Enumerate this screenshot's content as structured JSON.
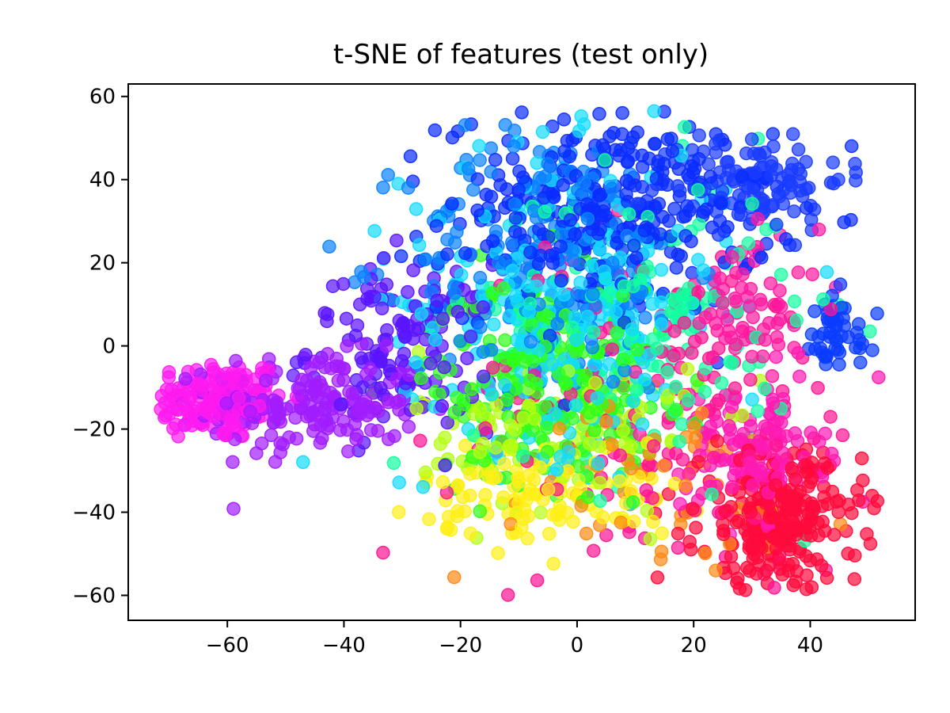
{
  "chart_data": {
    "type": "scatter",
    "title": "t-SNE of features (test only)",
    "xlabel": "",
    "ylabel": "",
    "xlim": [
      -77,
      58
    ],
    "ylim": [
      -66,
      63
    ],
    "xticks": [
      -60,
      -40,
      -20,
      0,
      20,
      40
    ],
    "yticks": [
      -60,
      -40,
      -20,
      0,
      20,
      40,
      60
    ],
    "xtick_labels": [
      "−60",
      "−40",
      "−20",
      "0",
      "20",
      "40"
    ],
    "ytick_labels": [
      "−60",
      "−40",
      "−20",
      "0",
      "20",
      "40",
      "60"
    ],
    "grid": false,
    "legend": "none",
    "marker_opacity": 0.7,
    "clusters": [
      {
        "name": "magenta",
        "color": "#ff19f0",
        "cx": -62,
        "cy": -13,
        "sx": 6,
        "sy": 5,
        "n": 160
      },
      {
        "name": "violet",
        "color": "#a11cff",
        "cx": -45,
        "cy": -14,
        "sx": 9,
        "sy": 6,
        "n": 180
      },
      {
        "name": "indigo",
        "color": "#5a14ff",
        "cx": -30,
        "cy": 0,
        "sx": 8,
        "sy": 10,
        "n": 140
      },
      {
        "name": "blue",
        "color": "#0a2cff",
        "cx": 5,
        "cy": 32,
        "sx": 14,
        "sy": 12,
        "n": 320
      },
      {
        "name": "blue-right",
        "color": "#1a3cff",
        "cx": 30,
        "cy": 40,
        "sx": 8,
        "sy": 6,
        "n": 120
      },
      {
        "name": "azure",
        "color": "#0a82ff",
        "cx": -5,
        "cy": 20,
        "sx": 12,
        "sy": 16,
        "n": 220
      },
      {
        "name": "cyan",
        "color": "#12dcff",
        "cx": -2,
        "cy": 10,
        "sx": 14,
        "sy": 18,
        "n": 260
      },
      {
        "name": "spring",
        "color": "#12ffa0",
        "cx": 10,
        "cy": 5,
        "sx": 14,
        "sy": 18,
        "n": 180
      },
      {
        "name": "green",
        "color": "#2eff1a",
        "cx": -5,
        "cy": -8,
        "sx": 10,
        "sy": 12,
        "n": 240
      },
      {
        "name": "lime",
        "color": "#b4ff14",
        "cx": -3,
        "cy": -20,
        "sx": 12,
        "sy": 10,
        "n": 120
      },
      {
        "name": "yellow",
        "color": "#fff014",
        "cx": -5,
        "cy": -35,
        "sx": 11,
        "sy": 6,
        "n": 110
      },
      {
        "name": "orange",
        "color": "#ff8a14",
        "cx": 10,
        "cy": -35,
        "sx": 18,
        "sy": 12,
        "n": 60
      },
      {
        "name": "pink",
        "color": "#ff1493",
        "cx": 15,
        "cy": -15,
        "sx": 18,
        "sy": 20,
        "n": 160
      },
      {
        "name": "hotpink",
        "color": "#ff1ab4",
        "cx": 30,
        "cy": -25,
        "sx": 6,
        "sy": 8,
        "n": 120
      },
      {
        "name": "red",
        "color": "#ff0a3c",
        "cx": 35,
        "cy": -42,
        "sx": 7,
        "sy": 8,
        "n": 260
      },
      {
        "name": "blue-far",
        "color": "#0a3cff",
        "cx": 44,
        "cy": 2,
        "sx": 4,
        "sy": 5,
        "n": 50
      },
      {
        "name": "pink-mid",
        "color": "#ff1aa0",
        "cx": 30,
        "cy": 10,
        "sx": 6,
        "sy": 8,
        "n": 70
      }
    ]
  }
}
